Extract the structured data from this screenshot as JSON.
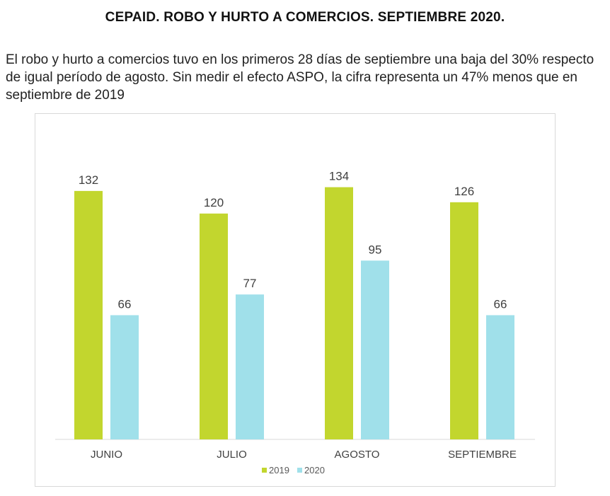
{
  "header": {
    "title": "CEPAID. ROBO Y HURTO A COMERCIOS. SEPTIEMBRE 2020.",
    "description": "El robo y hurto a comercios tuvo en los primeros 28 días de septiembre una baja del 30% respecto de igual período de agosto. Sin medir el efecto ASPO, la cifra representa un 47% menos que en septiembre de 2019"
  },
  "chart_data": {
    "type": "bar",
    "title": "",
    "xlabel": "",
    "ylabel": "",
    "categories": [
      "JUNIO",
      "JULIO",
      "AGOSTO",
      "SEPTIEMBRE"
    ],
    "series": [
      {
        "name": "2019",
        "values": [
          132,
          120,
          134,
          126
        ],
        "color": "#c2d62e"
      },
      {
        "name": "2020",
        "values": [
          66,
          77,
          95,
          66
        ],
        "color": "#a0e0ea"
      }
    ],
    "ylim": [
      0,
      140
    ],
    "grid": false,
    "legend_position": "bottom",
    "data_labels": true
  }
}
